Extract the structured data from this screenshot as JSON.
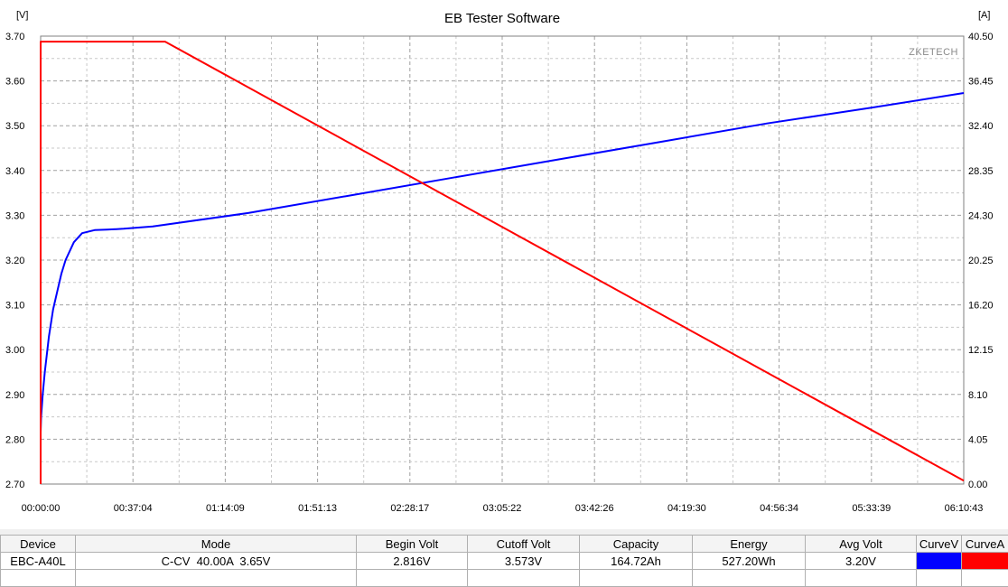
{
  "window": {
    "title": "EB Tester Software",
    "watermark": "ZKETECH"
  },
  "chart_data": {
    "type": "line",
    "title": "EB Tester Software",
    "x_ticks": [
      "00:00:00",
      "00:37:04",
      "01:14:09",
      "01:51:13",
      "02:28:17",
      "03:05:22",
      "03:42:26",
      "04:19:30",
      "04:56:34",
      "05:33:39",
      "06:10:43"
    ],
    "x_range_seconds": [
      0,
      22243
    ],
    "y_left": {
      "unit_label": "[V]",
      "ylim": [
        2.7,
        3.7
      ],
      "ticks": [
        "3.70",
        "3.60",
        "3.50",
        "3.40",
        "3.30",
        "3.20",
        "3.10",
        "3.00",
        "2.90",
        "2.80",
        "2.70"
      ]
    },
    "y_right": {
      "unit_label": "[A]",
      "ylim": [
        0.0,
        40.5
      ],
      "ticks": [
        "40.50",
        "36.45",
        "32.40",
        "28.35",
        "24.30",
        "20.25",
        "16.20",
        "12.15",
        "8.10",
        "4.05",
        "0.00"
      ]
    },
    "grid": true,
    "series": [
      {
        "name": "CurveV",
        "axis": "left",
        "color": "#0000ff",
        "x_seconds": [
          0,
          10,
          50,
          100,
          200,
          300,
          400,
          500,
          600,
          700,
          800,
          1000,
          1300,
          1600,
          2000,
          2700,
          5000,
          7500,
          10000,
          12500,
          15000,
          17500,
          20000,
          22243
        ],
        "values": [
          2.816,
          2.85,
          2.9,
          2.95,
          3.03,
          3.09,
          3.13,
          3.17,
          3.2,
          3.22,
          3.24,
          3.26,
          3.267,
          3.268,
          3.27,
          3.275,
          3.305,
          3.345,
          3.385,
          3.425,
          3.465,
          3.505,
          3.54,
          3.573
        ]
      },
      {
        "name": "CurveA",
        "axis": "right",
        "color": "#ff0000",
        "x_seconds": [
          0,
          1,
          3000,
          22243
        ],
        "values": [
          0.0,
          40.0,
          40.0,
          0.3
        ]
      }
    ]
  },
  "summary": {
    "headers": [
      "Device",
      "Mode",
      "Begin Volt",
      "Cutoff Volt",
      "Capacity",
      "Energy",
      "Avg Volt",
      "CurveV",
      "CurveA"
    ],
    "row": {
      "device": "EBC-A40L",
      "mode": "C-CV  40.00A  3.65V",
      "begin_volt": "2.816V",
      "cutoff_volt": "3.573V",
      "capacity": "164.72Ah",
      "energy": "527.20Wh",
      "avg_volt": "3.20V",
      "curve_v_color": "#0000ff",
      "curve_a_color": "#ff0000"
    }
  }
}
